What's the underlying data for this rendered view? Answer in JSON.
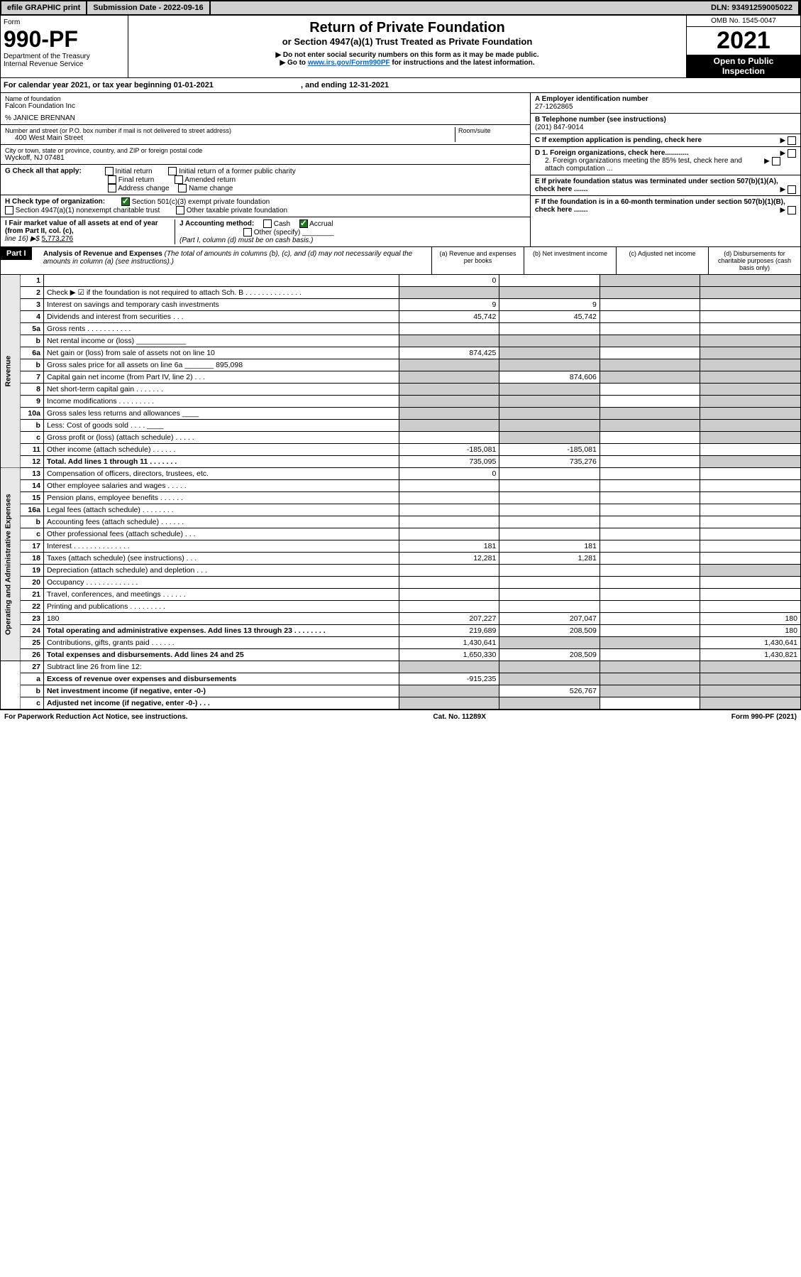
{
  "top": {
    "efile": "efile GRAPHIC print",
    "submission": "Submission Date - 2022-09-16",
    "dln": "DLN: 93491259005022"
  },
  "header": {
    "form_label": "Form",
    "form_num": "990-PF",
    "dept1": "Department of the Treasury",
    "dept2": "Internal Revenue Service",
    "title": "Return of Private Foundation",
    "subtitle": "or Section 4947(a)(1) Trust Treated as Private Foundation",
    "note1": "▶ Do not enter social security numbers on this form as it may be made public.",
    "note2_pre": "▶ Go to ",
    "note2_link": "www.irs.gov/Form990PF",
    "note2_post": " for instructions and the latest information.",
    "omb": "OMB No. 1545-0047",
    "year": "2021",
    "inspect1": "Open to Public",
    "inspect2": "Inspection"
  },
  "calendar": {
    "text_pre": "For calendar year 2021, or tax year beginning ",
    "begin": "01-01-2021",
    "text_mid": " , and ending ",
    "end": "12-31-2021"
  },
  "entity": {
    "name_label": "Name of foundation",
    "name": "Falcon Foundation Inc",
    "co": "% JANICE BRENNAN",
    "addr_label": "Number and street (or P.O. box number if mail is not delivered to street address)",
    "addr": "400 West Main Street",
    "room_label": "Room/suite",
    "city_label": "City or town, state or province, country, and ZIP or foreign postal code",
    "city": "Wyckoff, NJ  07481",
    "a_label": "A Employer identification number",
    "a_val": "27-1262865",
    "b_label": "B Telephone number (see instructions)",
    "b_val": "(201) 847-9014",
    "c_label": "C If exemption application is pending, check here",
    "g_label": "G Check all that apply:",
    "g_items": [
      "Initial return",
      "Initial return of a former public charity",
      "Final return",
      "Amended return",
      "Address change",
      "Name change"
    ],
    "d1": "D 1. Foreign organizations, check here............",
    "d2": "2. Foreign organizations meeting the 85% test, check here and attach computation ...",
    "h_label": "H Check type of organization:",
    "h1": "Section 501(c)(3) exempt private foundation",
    "h2": "Section 4947(a)(1) nonexempt charitable trust",
    "h3": "Other taxable private foundation",
    "e_label": "E  If private foundation status was terminated under section 507(b)(1)(A), check here .......",
    "i_label": "I Fair market value of all assets at end of year (from Part II, col. (c),",
    "i_line": "line 16) ▶$",
    "i_val": "5,773,276",
    "j_label": "J Accounting method:",
    "j_cash": "Cash",
    "j_accrual": "Accrual",
    "j_other": "Other (specify)",
    "j_note": "(Part I, column (d) must be on cash basis.)",
    "f_label": "F  If the foundation is in a 60-month termination under section 507(b)(1)(B), check here ......."
  },
  "part1": {
    "label": "Part I",
    "title": "Analysis of Revenue and Expenses",
    "note": " (The total of amounts in columns (b), (c), and (d) may not necessarily equal the amounts in column (a) (see instructions).)",
    "col_a": "(a)   Revenue and expenses per books",
    "col_b": "(b)  Net investment income",
    "col_c": "(c)  Adjusted net income",
    "col_d": "(d)  Disbursements for charitable purposes (cash basis only)"
  },
  "sides": {
    "revenue": "Revenue",
    "expenses": "Operating and Administrative Expenses"
  },
  "rows": [
    {
      "n": "1",
      "d": "",
      "a": "0",
      "b": "",
      "c": "",
      "shC": true,
      "shD": true
    },
    {
      "n": "2",
      "d": "Check ▶ ☑ if the foundation is not required to attach Sch. B   .   .   .   .   .   .   .   .   .   .   .   .   .   .",
      "shA": true,
      "shB": true,
      "shC": true,
      "shD": true
    },
    {
      "n": "3",
      "d": "Interest on savings and temporary cash investments",
      "a": "9",
      "b": "9"
    },
    {
      "n": "4",
      "d": "Dividends and interest from securities    .   .   .",
      "a": "45,742",
      "b": "45,742"
    },
    {
      "n": "5a",
      "d": "Gross rents    .   .   .   .   .   .   .   .   .   .   ."
    },
    {
      "n": "b",
      "d": "Net rental income or (loss)  ____________",
      "shA": true,
      "shB": true,
      "shC": true,
      "shD": true
    },
    {
      "n": "6a",
      "d": "Net gain or (loss) from sale of assets not on line 10",
      "a": "874,425",
      "shB": true,
      "shD": true
    },
    {
      "n": "b",
      "d": "Gross sales price for all assets on line 6a _______ 895,098",
      "shA": true,
      "shB": true,
      "shC": true,
      "shD": true
    },
    {
      "n": "7",
      "d": "Capital gain net income (from Part IV, line 2)   .   .   .",
      "b": "874,606",
      "shA": true,
      "shC": true,
      "shD": true
    },
    {
      "n": "8",
      "d": "Net short-term capital gain   .   .   .   .   .   .   .",
      "shA": true,
      "shB": true,
      "shD": true
    },
    {
      "n": "9",
      "d": "Income modifications  .   .   .   .   .   .   .   .   .",
      "shA": true,
      "shB": true,
      "shD": true
    },
    {
      "n": "10a",
      "d": "Gross sales less returns and allowances  ____",
      "shA": true,
      "shB": true,
      "shC": true,
      "shD": true
    },
    {
      "n": "b",
      "d": "Less: Cost of goods sold    .   .   .   .   ____",
      "shA": true,
      "shB": true,
      "shC": true,
      "shD": true
    },
    {
      "n": "c",
      "d": "Gross profit or (loss) (attach schedule)    .   .   .   .   .",
      "shB": true,
      "shD": true
    },
    {
      "n": "11",
      "d": "Other income (attach schedule)    .   .   .   .   .   .",
      "a": "-185,081",
      "b": "-185,081"
    },
    {
      "n": "12",
      "d": "Total. Add lines 1 through 11    .   .   .   .   .   .   .",
      "a": "735,095",
      "b": "735,276",
      "bold": true,
      "shD": true
    }
  ],
  "exp_rows": [
    {
      "n": "13",
      "d": "Compensation of officers, directors, trustees, etc.",
      "a": "0"
    },
    {
      "n": "14",
      "d": "Other employee salaries and wages    .   .   .   .   ."
    },
    {
      "n": "15",
      "d": "Pension plans, employee benefits  .   .   .   .   .   ."
    },
    {
      "n": "16a",
      "d": "Legal fees (attach schedule) .   .   .   .   .   .   .   ."
    },
    {
      "n": "b",
      "d": "Accounting fees (attach schedule)  .   .   .   .   .   ."
    },
    {
      "n": "c",
      "d": "Other professional fees (attach schedule)    .   .   ."
    },
    {
      "n": "17",
      "d": "Interest  .   .   .   .   .   .   .   .   .   .   .   .   .   .",
      "a": "181",
      "b": "181"
    },
    {
      "n": "18",
      "d": "Taxes (attach schedule) (see instructions)    .   .   .",
      "a": "12,281",
      "b": "1,281"
    },
    {
      "n": "19",
      "d": "Depreciation (attach schedule) and depletion   .   .   .",
      "shD": true
    },
    {
      "n": "20",
      "d": "Occupancy .   .   .   .   .   .   .   .   .   .   .   .   ."
    },
    {
      "n": "21",
      "d": "Travel, conferences, and meetings  .   .   .   .   .   ."
    },
    {
      "n": "22",
      "d": "Printing and publications  .   .   .   .   .   .   .   .   ."
    },
    {
      "n": "23",
      "d": "180",
      "a": "207,227",
      "b": "207,047"
    },
    {
      "n": "24",
      "d": "Total operating and administrative expenses. Add lines 13 through 23   .   .   .   .   .   .   .   .",
      "a": "219,689",
      "b": "208,509",
      "dv": "180",
      "bold": true
    },
    {
      "n": "25",
      "d": "Contributions, gifts, grants paid    .   .   .   .   .   .",
      "a": "1,430,641",
      "dv": "1,430,641",
      "shB": true,
      "shC": true
    },
    {
      "n": "26",
      "d": "Total expenses and disbursements. Add lines 24 and 25",
      "a": "1,650,330",
      "b": "208,509",
      "dv": "1,430,821",
      "bold": true
    }
  ],
  "bottom_rows": [
    {
      "n": "27",
      "d": "Subtract line 26 from line 12:",
      "shA": true,
      "shB": true,
      "shC": true,
      "shD": true
    },
    {
      "n": "a",
      "d": "Excess of revenue over expenses and disbursements",
      "a": "-915,235",
      "shB": true,
      "shC": true,
      "shD": true,
      "bold": true
    },
    {
      "n": "b",
      "d": "Net investment income (if negative, enter -0-)",
      "b": "526,767",
      "shA": true,
      "shC": true,
      "shD": true,
      "bold": true
    },
    {
      "n": "c",
      "d": "Adjusted net income (if negative, enter -0-)    .   .   .",
      "shA": true,
      "shB": true,
      "shD": true,
      "bold": true
    }
  ],
  "footer": {
    "left": "For Paperwork Reduction Act Notice, see instructions.",
    "mid": "Cat. No. 11289X",
    "right": "Form 990-PF (2021)"
  }
}
